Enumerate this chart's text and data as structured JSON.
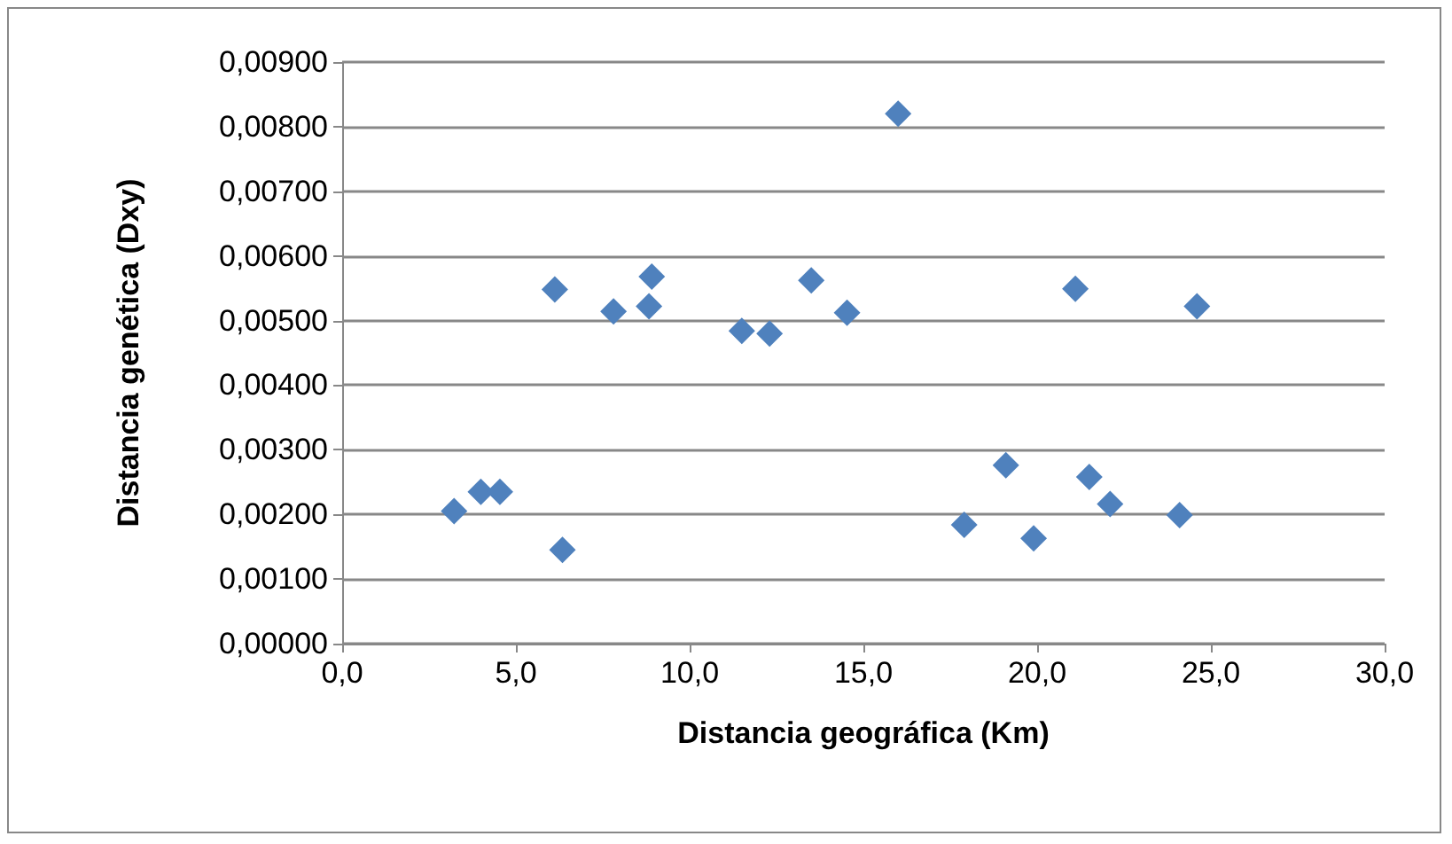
{
  "chart_data": {
    "type": "scatter",
    "xlabel": "Distancia geográfica (Km)",
    "ylabel": "Distancia genética (Dxy)",
    "color": "#4f81bd",
    "marker": "diamond",
    "grid": "y",
    "x": [
      3.22,
      3.99,
      4.54,
      6.12,
      6.34,
      7.81,
      8.83,
      8.91,
      11.5,
      12.3,
      13.5,
      14.53,
      16.0,
      17.9,
      19.1,
      19.9,
      21.1,
      21.5,
      22.1,
      24.1,
      24.6
    ],
    "values": [
      0.00205,
      0.00235,
      0.00235,
      0.00548,
      0.00145,
      0.00514,
      0.00522,
      0.00568,
      0.00484,
      0.0048,
      0.00562,
      0.00512,
      0.0082,
      0.00184,
      0.00276,
      0.00163,
      0.00549,
      0.00258,
      0.00216,
      0.00199,
      0.00522
    ],
    "xlim": [
      0,
      30
    ],
    "xticks": [
      {
        "value": 0,
        "label": "0,0"
      },
      {
        "value": 5,
        "label": "5,0"
      },
      {
        "value": 10,
        "label": "10,0"
      },
      {
        "value": 15,
        "label": "15,0"
      },
      {
        "value": 20,
        "label": "20,0"
      },
      {
        "value": 25,
        "label": "25,0"
      },
      {
        "value": 30,
        "label": "30,0"
      }
    ],
    "ylim": [
      0,
      0.009
    ],
    "yticks": [
      {
        "value": 0,
        "label": "0,00000"
      },
      {
        "value": 0.001,
        "label": "0,00100"
      },
      {
        "value": 0.002,
        "label": "0,00200"
      },
      {
        "value": 0.003,
        "label": "0,00300"
      },
      {
        "value": 0.004,
        "label": "0,00400"
      },
      {
        "value": 0.005,
        "label": "0,00500"
      },
      {
        "value": 0.006,
        "label": "0,00600"
      },
      {
        "value": 0.007,
        "label": "0,00700"
      },
      {
        "value": 0.008,
        "label": "0,00800"
      },
      {
        "value": 0.009,
        "label": "0,00900"
      }
    ]
  }
}
